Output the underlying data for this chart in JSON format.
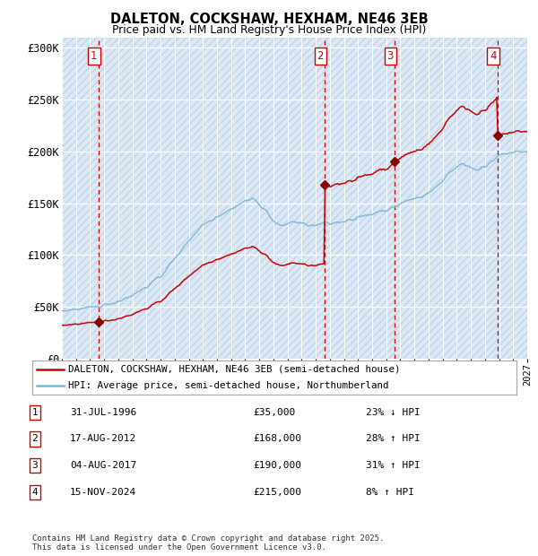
{
  "title1": "DALETON, COCKSHAW, HEXHAM, NE46 3EB",
  "title2": "Price paid vs. HM Land Registry's House Price Index (HPI)",
  "hpi_color": "#7ab4d8",
  "price_color": "#cc0000",
  "bg_color": "#dce9f5",
  "grid_color": "#ffffff",
  "vline_color": "#cc0000",
  "ylim": [
    0,
    310000
  ],
  "yticks": [
    0,
    50000,
    100000,
    150000,
    200000,
    250000,
    300000
  ],
  "ytick_labels": [
    "£0",
    "£50K",
    "£100K",
    "£150K",
    "£200K",
    "£250K",
    "£300K"
  ],
  "xlim_start": 1994,
  "xlim_end": 2027,
  "transactions": [
    {
      "num": 1,
      "date_str": "31-JUL-1996",
      "date_decimal": 1996.58,
      "price": 35000,
      "pct": "23%",
      "dir": "↓"
    },
    {
      "num": 2,
      "date_str": "17-AUG-2012",
      "date_decimal": 2012.63,
      "price": 168000,
      "pct": "28%",
      "dir": "↑"
    },
    {
      "num": 3,
      "date_str": "04-AUG-2017",
      "date_decimal": 2017.59,
      "price": 190000,
      "pct": "31%",
      "dir": "↑"
    },
    {
      "num": 4,
      "date_str": "15-NOV-2024",
      "date_decimal": 2024.88,
      "price": 215000,
      "pct": "8%",
      "dir": "↑"
    }
  ],
  "legend_price_label": "DALETON, COCKSHAW, HEXHAM, NE46 3EB (semi-detached house)",
  "legend_hpi_label": "HPI: Average price, semi-detached house, Northumberland",
  "footer": "Contains HM Land Registry data © Crown copyright and database right 2025.\nThis data is licensed under the Open Government Licence v3.0.",
  "table_rows": [
    [
      "1",
      "31-JUL-1996",
      "£35,000",
      "23% ↓ HPI"
    ],
    [
      "2",
      "17-AUG-2012",
      "£168,000",
      "28% ↑ HPI"
    ],
    [
      "3",
      "04-AUG-2017",
      "£190,000",
      "31% ↑ HPI"
    ],
    [
      "4",
      "15-NOV-2024",
      "£215,000",
      "8% ↑ HPI"
    ]
  ],
  "hpi_keypoints": [
    [
      1994.0,
      46000
    ],
    [
      1995.0,
      47500
    ],
    [
      1996.0,
      49000
    ],
    [
      1997.0,
      52000
    ],
    [
      1998.0,
      56000
    ],
    [
      1999.0,
      62000
    ],
    [
      2000.0,
      70000
    ],
    [
      2001.0,
      80000
    ],
    [
      2002.0,
      97000
    ],
    [
      2003.0,
      115000
    ],
    [
      2004.0,
      130000
    ],
    [
      2005.0,
      138000
    ],
    [
      2006.0,
      145000
    ],
    [
      2007.0,
      153000
    ],
    [
      2007.5,
      155000
    ],
    [
      2008.0,
      150000
    ],
    [
      2008.5,
      143000
    ],
    [
      2009.0,
      133000
    ],
    [
      2009.5,
      128000
    ],
    [
      2010.0,
      131000
    ],
    [
      2010.5,
      133000
    ],
    [
      2011.0,
      131000
    ],
    [
      2011.5,
      129000
    ],
    [
      2012.0,
      128000
    ],
    [
      2012.5,
      131000
    ],
    [
      2013.0,
      130000
    ],
    [
      2013.5,
      132000
    ],
    [
      2014.0,
      133000
    ],
    [
      2014.5,
      135000
    ],
    [
      2015.0,
      136000
    ],
    [
      2015.5,
      138000
    ],
    [
      2016.0,
      140000
    ],
    [
      2016.5,
      143000
    ],
    [
      2017.0,
      144000
    ],
    [
      2017.5,
      146000
    ],
    [
      2018.0,
      150000
    ],
    [
      2018.5,
      153000
    ],
    [
      2019.0,
      155000
    ],
    [
      2019.5,
      157000
    ],
    [
      2020.0,
      160000
    ],
    [
      2020.5,
      165000
    ],
    [
      2021.0,
      172000
    ],
    [
      2021.5,
      180000
    ],
    [
      2022.0,
      185000
    ],
    [
      2022.5,
      188000
    ],
    [
      2023.0,
      185000
    ],
    [
      2023.5,
      183000
    ],
    [
      2024.0,
      185000
    ],
    [
      2024.5,
      190000
    ],
    [
      2025.0,
      196000
    ],
    [
      2025.5,
      198000
    ],
    [
      2026.0,
      199000
    ],
    [
      2027.0,
      200000
    ]
  ]
}
